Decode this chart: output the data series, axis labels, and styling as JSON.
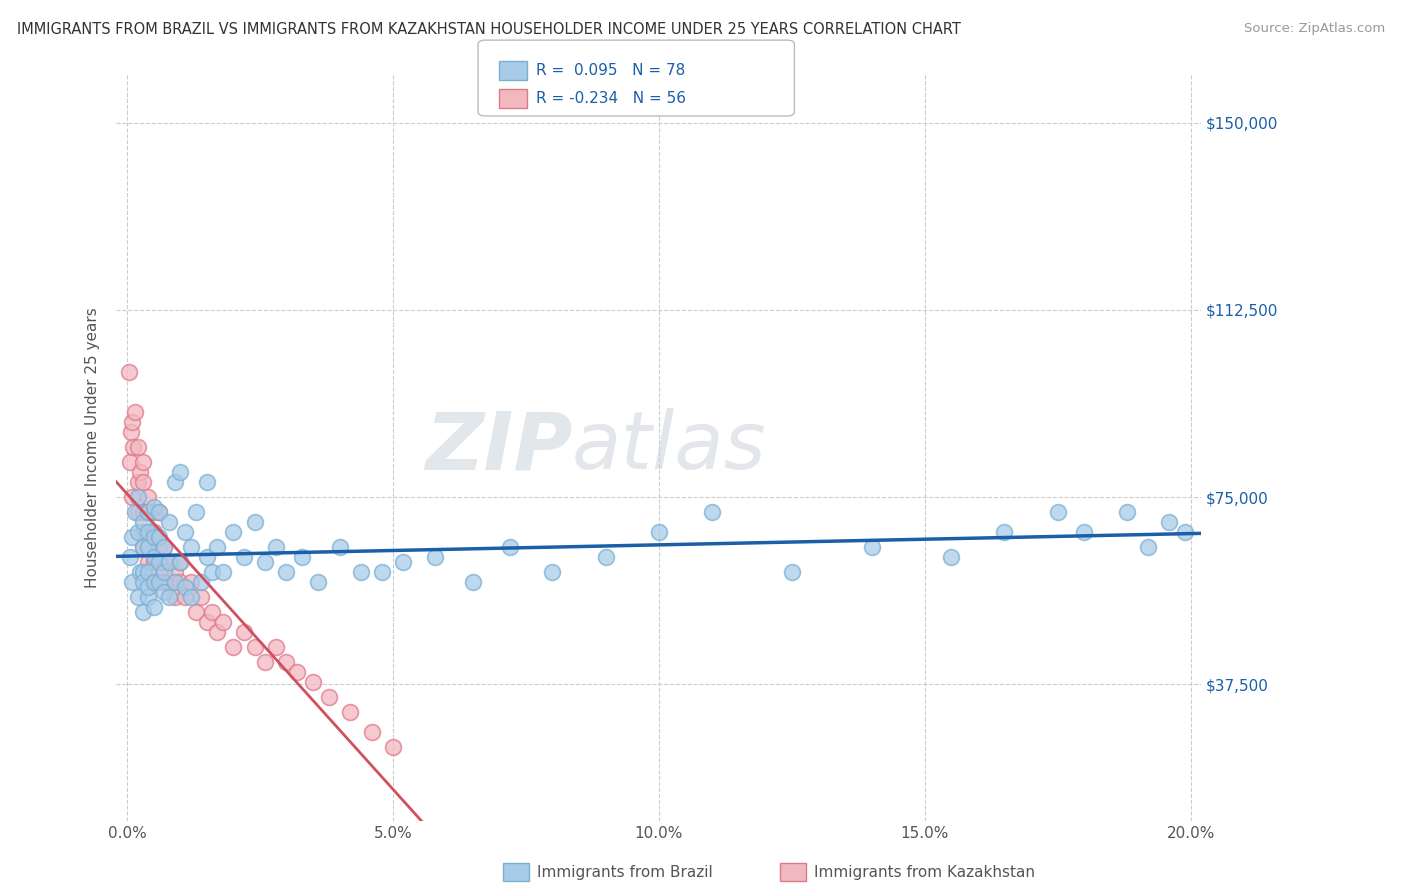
{
  "title": "IMMIGRANTS FROM BRAZIL VS IMMIGRANTS FROM KAZAKHSTAN HOUSEHOLDER INCOME UNDER 25 YEARS CORRELATION CHART",
  "source": "Source: ZipAtlas.com",
  "ylabel": "Householder Income Under 25 years",
  "xlim": [
    -0.002,
    0.202
  ],
  "ylim": [
    10000,
    160000
  ],
  "yticks": [
    37500,
    75000,
    112500,
    150000
  ],
  "ytick_labels": [
    "$37,500",
    "$75,000",
    "$112,500",
    "$150,000"
  ],
  "xticks": [
    0.0,
    0.05,
    0.1,
    0.15,
    0.2
  ],
  "xtick_labels": [
    "0.0%",
    "5.0%",
    "10.0%",
    "15.0%",
    "20.0%"
  ],
  "brazil_color": "#A8CBE8",
  "brazil_edge": "#7AAFD4",
  "kazakhstan_color": "#F2B8C0",
  "kazakhstan_edge": "#E07888",
  "brazil_R": 0.095,
  "brazil_N": 78,
  "kazakhstan_R": -0.234,
  "kazakhstan_N": 56,
  "legend_label_brazil": "Immigrants from Brazil",
  "legend_label_kazakhstan": "Immigrants from Kazakhstan",
  "watermark": "ZIPatlas",
  "brazil_scatter_x": [
    0.0005,
    0.001,
    0.001,
    0.0015,
    0.002,
    0.002,
    0.002,
    0.0025,
    0.003,
    0.003,
    0.003,
    0.003,
    0.003,
    0.004,
    0.004,
    0.004,
    0.004,
    0.004,
    0.004,
    0.005,
    0.005,
    0.005,
    0.005,
    0.005,
    0.006,
    0.006,
    0.006,
    0.006,
    0.007,
    0.007,
    0.007,
    0.008,
    0.008,
    0.008,
    0.009,
    0.009,
    0.01,
    0.01,
    0.011,
    0.011,
    0.012,
    0.012,
    0.013,
    0.014,
    0.015,
    0.015,
    0.016,
    0.017,
    0.018,
    0.02,
    0.022,
    0.024,
    0.026,
    0.028,
    0.03,
    0.033,
    0.036,
    0.04,
    0.044,
    0.048,
    0.052,
    0.058,
    0.065,
    0.072,
    0.08,
    0.09,
    0.1,
    0.11,
    0.125,
    0.14,
    0.155,
    0.165,
    0.175,
    0.18,
    0.188,
    0.192,
    0.196,
    0.199
  ],
  "brazil_scatter_y": [
    63000,
    58000,
    67000,
    72000,
    55000,
    68000,
    75000,
    60000,
    52000,
    60000,
    65000,
    70000,
    58000,
    55000,
    60000,
    65000,
    68000,
    72000,
    57000,
    53000,
    58000,
    63000,
    67000,
    73000,
    58000,
    62000,
    67000,
    72000,
    56000,
    60000,
    65000,
    55000,
    62000,
    70000,
    58000,
    78000,
    62000,
    80000,
    57000,
    68000,
    55000,
    65000,
    72000,
    58000,
    63000,
    78000,
    60000,
    65000,
    60000,
    68000,
    63000,
    70000,
    62000,
    65000,
    60000,
    63000,
    58000,
    65000,
    60000,
    60000,
    62000,
    63000,
    58000,
    65000,
    60000,
    63000,
    68000,
    72000,
    60000,
    65000,
    63000,
    68000,
    72000,
    68000,
    72000,
    65000,
    70000,
    68000
  ],
  "kazakhstan_scatter_x": [
    0.0003,
    0.0005,
    0.0008,
    0.001,
    0.001,
    0.0012,
    0.0015,
    0.002,
    0.002,
    0.002,
    0.0025,
    0.003,
    0.003,
    0.003,
    0.003,
    0.003,
    0.004,
    0.004,
    0.004,
    0.004,
    0.005,
    0.005,
    0.005,
    0.005,
    0.006,
    0.006,
    0.006,
    0.007,
    0.007,
    0.007,
    0.008,
    0.008,
    0.009,
    0.009,
    0.01,
    0.01,
    0.011,
    0.012,
    0.013,
    0.014,
    0.015,
    0.016,
    0.017,
    0.018,
    0.02,
    0.022,
    0.024,
    0.026,
    0.028,
    0.03,
    0.032,
    0.035,
    0.038,
    0.042,
    0.046,
    0.05
  ],
  "kazakhstan_scatter_y": [
    100000,
    82000,
    88000,
    75000,
    90000,
    85000,
    92000,
    78000,
    85000,
    72000,
    80000,
    72000,
    78000,
    65000,
    82000,
    68000,
    72000,
    65000,
    75000,
    62000,
    68000,
    62000,
    72000,
    58000,
    65000,
    72000,
    60000,
    58000,
    65000,
    62000,
    58000,
    62000,
    55000,
    60000,
    58000,
    62000,
    55000,
    58000,
    52000,
    55000,
    50000,
    52000,
    48000,
    50000,
    45000,
    48000,
    45000,
    42000,
    45000,
    42000,
    40000,
    38000,
    35000,
    32000,
    28000,
    25000
  ]
}
